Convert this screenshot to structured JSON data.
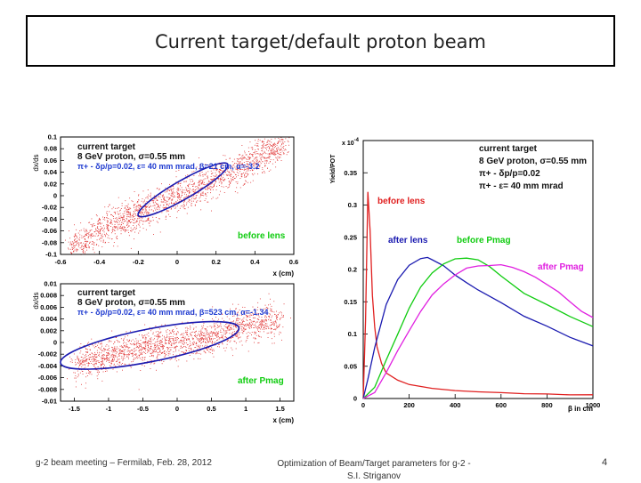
{
  "slide": {
    "title": "Current target/default proton beam",
    "footer_left": "g-2 beam meeting – Fermilab, Feb. 28, 2012",
    "footer_center_line1": "Optimization of Beam/Target parameters for g-2 -",
    "footer_center_line2": "S.I. Striganov",
    "page_number": "4"
  },
  "colors": {
    "red": "#e02020",
    "blue": "#1a1ab0",
    "green": "#10cc10",
    "magenta": "#e020e0",
    "text_blue": "#1e3ad0"
  },
  "chart_data": [
    {
      "type": "scatter",
      "panel": "top-left",
      "xlabel": "x (cm)",
      "ylabel": "dx/ds",
      "xlim": [
        -0.6,
        0.6
      ],
      "ylim": [
        -0.1,
        0.1
      ],
      "xticks": [
        -0.6,
        -0.4,
        -0.2,
        0,
        0.2,
        0.4,
        0.6
      ],
      "xtick_labels": [
        "-0.6",
        "-0.4",
        "-0.2",
        "0",
        "0.2",
        "0.4",
        "0.6"
      ],
      "yticks": [
        -0.1,
        -0.08,
        -0.06,
        -0.04,
        -0.02,
        0,
        0.02,
        0.04,
        0.06,
        0.08,
        0.1
      ],
      "ytick_labels": [
        "-0.1",
        "-0.08",
        "-0.06",
        "-0.04",
        "-0.02",
        "0",
        "0.02",
        "0.04",
        "0.06",
        "0.08",
        "0.1"
      ],
      "annotations": {
        "line1": "current target",
        "line2": "8 GeV proton, σ=0.55 mm",
        "line3": "π+ - δp/p=0.02, ε= 40 mm mrad, β=21 cm, α=-3.2",
        "label": "before lens"
      },
      "ellipse": {
        "center": [
          0.03,
          0.01
        ],
        "x_half": 0.23,
        "angle_slope": 0.19
      },
      "points": [
        [
          -0.55,
          -0.09
        ],
        [
          -0.45,
          -0.07
        ],
        [
          -0.35,
          -0.05
        ],
        [
          -0.2,
          -0.03
        ],
        [
          0,
          0.0
        ],
        [
          0.2,
          0.03
        ],
        [
          0.35,
          0.05
        ],
        [
          0.45,
          0.07
        ],
        [
          0.55,
          0.09
        ]
      ]
    },
    {
      "type": "scatter",
      "panel": "bottom-left",
      "xlabel": "x (cm)",
      "ylabel": "dx/ds",
      "xlim": [
        -1.7,
        1.7
      ],
      "ylim": [
        -0.01,
        0.01
      ],
      "xticks": [
        -1.5,
        -1,
        -0.5,
        0,
        0.5,
        1,
        1.5
      ],
      "xtick_labels": [
        "-1.5",
        "-1",
        "-0.5",
        "0",
        "0.5",
        "1",
        "1.5"
      ],
      "yticks": [
        -0.01,
        -0.008,
        -0.006,
        -0.004,
        -0.002,
        0,
        0.002,
        0.004,
        0.006,
        0.008,
        0.01
      ],
      "ytick_labels": [
        "-0.01",
        "-0.008",
        "-0.006",
        "-0.004",
        "-0.002",
        "0",
        "0.002",
        "0.004",
        "0.006",
        "0.008",
        "0.01"
      ],
      "annotations": {
        "line1": "current target",
        "line2": "8 GeV proton, σ=0.55 mm",
        "line3": "π+ - δp/p=0.02, ε= 40 mm mrad, β=523 cm, α=-1.34",
        "label": "after Pmag"
      },
      "ellipse": {
        "center": [
          -0.4,
          -0.0005
        ],
        "x_half": 1.3,
        "angle_slope": 0.0023
      },
      "points": [
        [
          -1.5,
          -0.004
        ],
        [
          -1,
          -0.002
        ],
        [
          -0.5,
          -0.001
        ],
        [
          0,
          0.0
        ],
        [
          0.5,
          0.001
        ],
        [
          1,
          0.003
        ],
        [
          1.5,
          0.004
        ]
      ]
    },
    {
      "type": "line",
      "panel": "right",
      "xlabel": "β in cm",
      "ylabel": "Yield/POT",
      "y_exponent": "x 10",
      "y_exponent_power": "-4",
      "xlim": [
        0,
        1000
      ],
      "ylim": [
        0,
        0.4
      ],
      "xticks": [
        0,
        200,
        400,
        600,
        800,
        1000
      ],
      "xtick_labels": [
        "0",
        "200",
        "400",
        "600",
        "800",
        "1000"
      ],
      "yticks": [
        0,
        0.05,
        0.1,
        0.15,
        0.2,
        0.25,
        0.3,
        0.35
      ],
      "ytick_labels": [
        "0",
        "0.05",
        "0.1",
        "0.15",
        "0.2",
        "0.25",
        "0.3",
        "0.35"
      ],
      "annotations": {
        "line1": "current target",
        "line2": "8 GeV proton, σ=0.55 mm",
        "line3": "π+ - δp/p=0.02",
        "line4": "π+ - ε= 40 mm mrad"
      },
      "series": [
        {
          "name": "before lens",
          "color": "#e02020",
          "x": [
            0,
            10,
            20,
            30,
            40,
            50,
            60,
            80,
            100,
            150,
            200,
            300,
            400,
            500,
            600,
            700,
            800,
            900,
            1000
          ],
          "y": [
            0.0,
            0.12,
            0.32,
            0.26,
            0.16,
            0.11,
            0.08,
            0.055,
            0.04,
            0.028,
            0.022,
            0.016,
            0.012,
            0.01,
            0.009,
            0.008,
            0.007,
            0.006,
            0.006
          ]
        },
        {
          "name": "after lens",
          "color": "#1a1ab0",
          "x": [
            0,
            20,
            50,
            100,
            150,
            200,
            250,
            280,
            300,
            350,
            400,
            450,
            500,
            600,
            700,
            800,
            900,
            1000
          ],
          "y": [
            0.0,
            0.03,
            0.08,
            0.145,
            0.185,
            0.207,
            0.217,
            0.218,
            0.215,
            0.205,
            0.192,
            0.18,
            0.168,
            0.148,
            0.128,
            0.112,
            0.095,
            0.082
          ]
        },
        {
          "name": "before Pmag",
          "color": "#10cc10",
          "x": [
            0,
            50,
            100,
            150,
            200,
            250,
            300,
            350,
            400,
            450,
            500,
            550,
            600,
            700,
            800,
            900,
            1000
          ],
          "y": [
            0.0,
            0.018,
            0.06,
            0.1,
            0.14,
            0.172,
            0.195,
            0.208,
            0.216,
            0.218,
            0.215,
            0.205,
            0.19,
            0.163,
            0.145,
            0.128,
            0.112
          ]
        },
        {
          "name": "after Pmag",
          "color": "#e020e0",
          "x": [
            0,
            50,
            100,
            150,
            200,
            250,
            300,
            350,
            400,
            450,
            500,
            550,
            600,
            650,
            700,
            750,
            800,
            850,
            900,
            950,
            1000
          ],
          "y": [
            0.0,
            0.01,
            0.04,
            0.075,
            0.105,
            0.135,
            0.16,
            0.178,
            0.192,
            0.202,
            0.206,
            0.207,
            0.207,
            0.204,
            0.197,
            0.188,
            0.177,
            0.165,
            0.15,
            0.135,
            0.125
          ]
        }
      ],
      "series_labels": {
        "before_lens": "before lens",
        "after_lens": "after lens",
        "before_pmag": "before Pmag",
        "after_pmag": "after Pmag"
      }
    }
  ]
}
